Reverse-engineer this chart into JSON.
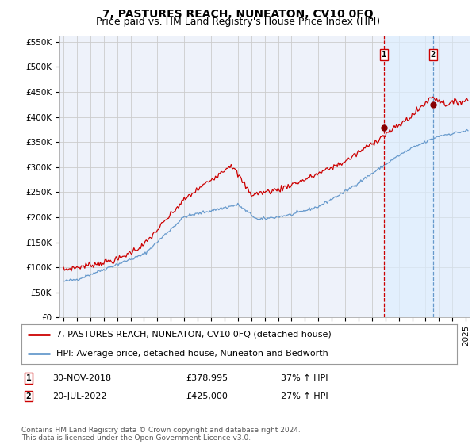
{
  "title": "7, PASTURES REACH, NUNEATON, CV10 0FQ",
  "subtitle": "Price paid vs. HM Land Registry's House Price Index (HPI)",
  "ylim": [
    0,
    562500
  ],
  "yticks": [
    0,
    50000,
    100000,
    150000,
    200000,
    250000,
    300000,
    350000,
    400000,
    450000,
    500000,
    550000
  ],
  "ytick_labels": [
    "£0",
    "£50K",
    "£100K",
    "£150K",
    "£200K",
    "£250K",
    "£300K",
    "£350K",
    "£400K",
    "£450K",
    "£500K",
    "£550K"
  ],
  "xlim_left": 1994.7,
  "xlim_right": 2025.3,
  "sale1_date": 2018.92,
  "sale1_price": 378995,
  "sale2_date": 2022.55,
  "sale2_price": 425000,
  "legend_line1": "7, PASTURES REACH, NUNEATON, CV10 0FQ (detached house)",
  "legend_line2": "HPI: Average price, detached house, Nuneaton and Bedworth",
  "table_row1": [
    "1",
    "30-NOV-2018",
    "£378,995",
    "37% ↑ HPI"
  ],
  "table_row2": [
    "2",
    "20-JUL-2022",
    "£425,000",
    "27% ↑ HPI"
  ],
  "footer": "Contains HM Land Registry data © Crown copyright and database right 2024.\nThis data is licensed under the Open Government Licence v3.0.",
  "red_color": "#cc0000",
  "blue_color": "#6699cc",
  "shade_color": "#ddeeff",
  "bg_color": "#ffffff",
  "plot_bg_color": "#eef2fa",
  "grid_color": "#cccccc",
  "title_fontsize": 10,
  "subtitle_fontsize": 9,
  "tick_fontsize": 7.5,
  "legend_fontsize": 8,
  "table_fontsize": 8,
  "footer_fontsize": 6.5
}
